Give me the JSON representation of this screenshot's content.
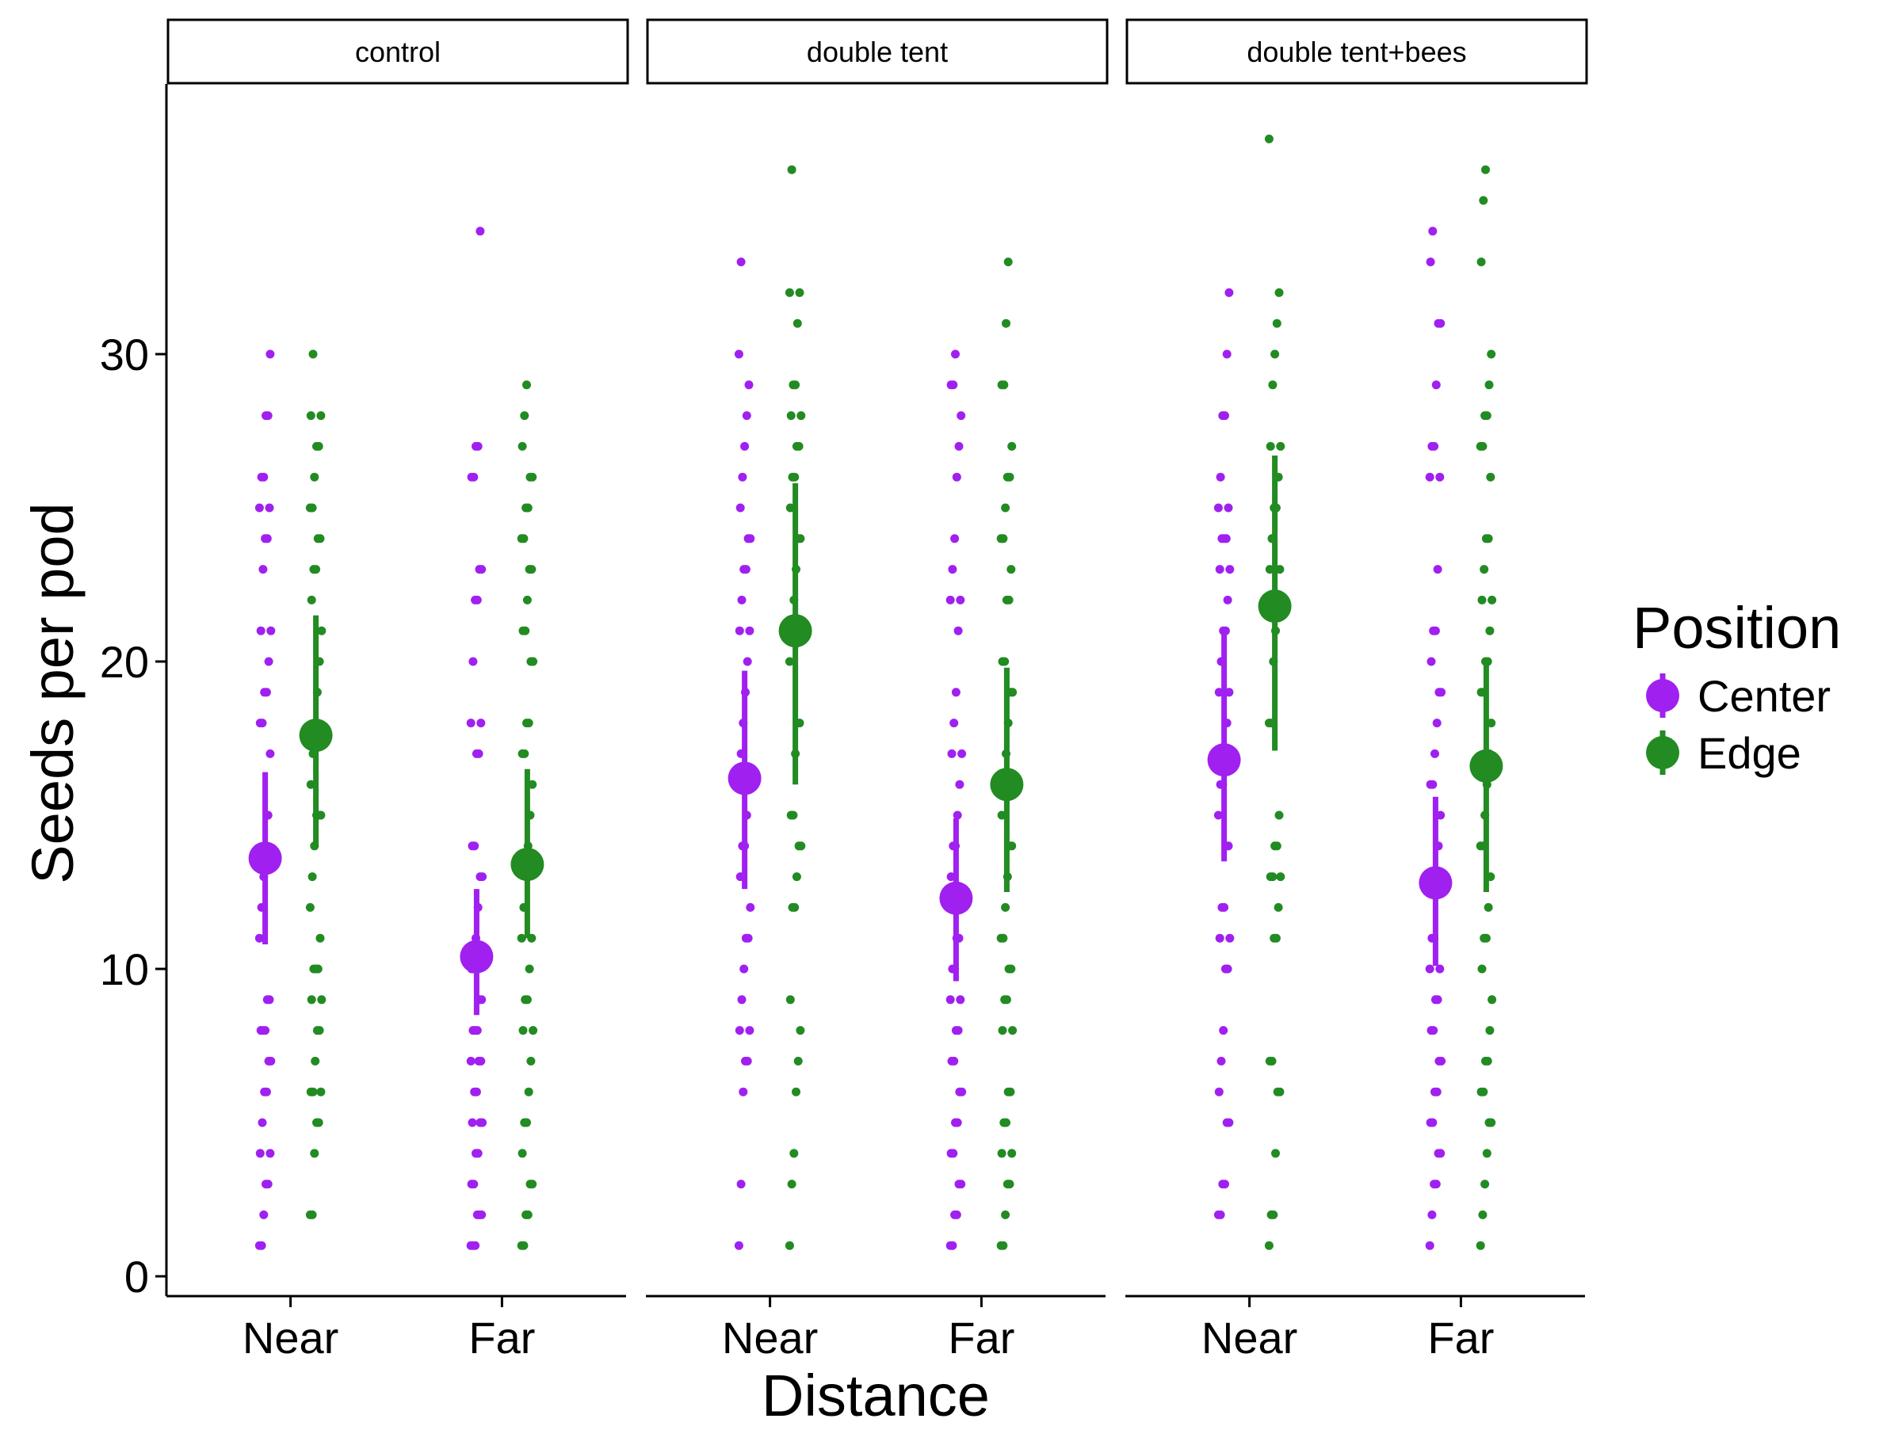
{
  "chart_data": {
    "type": "scatter",
    "xlabel": "Distance",
    "ylabel": "Seeds per pod",
    "categories": [
      "Near",
      "Far"
    ],
    "ylim": [
      -0.5,
      38.5
    ],
    "yticks": [
      0,
      10,
      20,
      30
    ],
    "grid": false,
    "legend": {
      "title": "Position",
      "placement": "right",
      "entries": [
        {
          "name": "Center",
          "color": "#a020f0"
        },
        {
          "name": "Edge",
          "color": "#228b22"
        }
      ]
    },
    "panels": [
      {
        "label": "control",
        "summary": [
          {
            "position": "Center",
            "distance": "Near",
            "mean": 13.6,
            "low": 10.8,
            "high": 16.4
          },
          {
            "position": "Edge",
            "distance": "Near",
            "mean": 17.6,
            "low": 14.0,
            "high": 21.5
          },
          {
            "position": "Center",
            "distance": "Far",
            "mean": 10.4,
            "low": 8.5,
            "high": 12.6
          },
          {
            "position": "Edge",
            "distance": "Far",
            "mean": 13.4,
            "low": 11.0,
            "high": 16.5
          }
        ],
        "points": [
          {
            "position": "Center",
            "distance": "Near",
            "values": [
              1,
              1,
              2,
              3,
              3,
              4,
              4,
              5,
              6,
              6,
              7,
              7,
              8,
              8,
              8,
              9,
              9,
              11,
              12,
              13,
              14,
              15,
              17,
              18,
              18,
              19,
              19,
              20,
              21,
              21,
              23,
              24,
              24,
              25,
              25,
              26,
              26,
              28,
              28,
              30
            ]
          },
          {
            "position": "Edge",
            "distance": "Near",
            "values": [
              2,
              2,
              4,
              5,
              5,
              6,
              6,
              6,
              7,
              8,
              8,
              9,
              9,
              10,
              10,
              10,
              11,
              12,
              13,
              14,
              15,
              15,
              15,
              16,
              17,
              18,
              19,
              20,
              21,
              22,
              23,
              23,
              24,
              24,
              25,
              25,
              26,
              27,
              27,
              28,
              28,
              30
            ]
          },
          {
            "position": "Center",
            "distance": "Far",
            "values": [
              1,
              1,
              1,
              2,
              2,
              2,
              3,
              3,
              4,
              4,
              5,
              5,
              5,
              6,
              6,
              7,
              7,
              7,
              8,
              8,
              8,
              9,
              9,
              10,
              10,
              11,
              12,
              13,
              13,
              14,
              14,
              17,
              17,
              18,
              18,
              20,
              22,
              22,
              23,
              23,
              26,
              26,
              27,
              27,
              34
            ]
          },
          {
            "position": "Edge",
            "distance": "Far",
            "values": [
              1,
              1,
              2,
              2,
              3,
              3,
              4,
              5,
              5,
              6,
              7,
              8,
              8,
              9,
              9,
              10,
              11,
              11,
              12,
              13,
              14,
              15,
              16,
              17,
              17,
              18,
              18,
              20,
              20,
              21,
              21,
              22,
              23,
              23,
              24,
              24,
              25,
              25,
              26,
              26,
              27,
              28,
              29
            ]
          }
        ]
      },
      {
        "label": "double tent",
        "summary": [
          {
            "position": "Center",
            "distance": "Near",
            "mean": 16.2,
            "low": 12.6,
            "high": 19.7
          },
          {
            "position": "Edge",
            "distance": "Near",
            "mean": 21.0,
            "low": 16.0,
            "high": 25.8
          },
          {
            "position": "Center",
            "distance": "Far",
            "mean": 12.3,
            "low": 9.6,
            "high": 14.9
          },
          {
            "position": "Edge",
            "distance": "Far",
            "mean": 16.0,
            "low": 12.5,
            "high": 19.8
          }
        ],
        "points": [
          {
            "position": "Center",
            "distance": "Near",
            "values": [
              1,
              3,
              6,
              7,
              7,
              8,
              8,
              9,
              10,
              11,
              11,
              12,
              13,
              14,
              14,
              15,
              16,
              16,
              17,
              18,
              19,
              20,
              21,
              21,
              22,
              23,
              23,
              24,
              24,
              25,
              26,
              27,
              28,
              29,
              30,
              33
            ]
          },
          {
            "position": "Edge",
            "distance": "Near",
            "values": [
              1,
              3,
              4,
              6,
              7,
              8,
              9,
              12,
              12,
              13,
              14,
              14,
              15,
              15,
              17,
              18,
              18,
              20,
              21,
              22,
              23,
              24,
              24,
              25,
              26,
              26,
              27,
              27,
              28,
              28,
              29,
              29,
              31,
              32,
              32,
              36
            ]
          },
          {
            "position": "Center",
            "distance": "Far",
            "values": [
              1,
              1,
              2,
              2,
              3,
              3,
              4,
              4,
              5,
              5,
              6,
              6,
              7,
              7,
              8,
              8,
              9,
              9,
              10,
              10,
              11,
              11,
              12,
              13,
              14,
              14,
              15,
              16,
              17,
              17,
              18,
              19,
              21,
              22,
              22,
              23,
              24,
              26,
              27,
              28,
              29,
              29,
              30
            ]
          },
          {
            "position": "Edge",
            "distance": "Far",
            "values": [
              1,
              1,
              2,
              3,
              3,
              4,
              4,
              5,
              5,
              6,
              6,
              8,
              8,
              9,
              9,
              10,
              10,
              11,
              11,
              12,
              13,
              14,
              14,
              15,
              16,
              17,
              18,
              19,
              19,
              20,
              20,
              22,
              22,
              23,
              24,
              24,
              25,
              26,
              26,
              27,
              29,
              29,
              31,
              33
            ]
          }
        ]
      },
      {
        "label": "double tent+bees",
        "summary": [
          {
            "position": "Center",
            "distance": "Near",
            "mean": 16.8,
            "low": 13.5,
            "high": 21.0
          },
          {
            "position": "Edge",
            "distance": "Near",
            "mean": 21.8,
            "low": 17.1,
            "high": 26.7
          },
          {
            "position": "Center",
            "distance": "Far",
            "mean": 12.8,
            "low": 10.1,
            "high": 15.6
          },
          {
            "position": "Edge",
            "distance": "Far",
            "mean": 16.6,
            "low": 12.5,
            "high": 20.0
          }
        ],
        "points": [
          {
            "position": "Center",
            "distance": "Near",
            "values": [
              2,
              2,
              3,
              3,
              5,
              5,
              6,
              7,
              8,
              10,
              10,
              11,
              11,
              12,
              12,
              14,
              14,
              15,
              16,
              16,
              17,
              18,
              19,
              19,
              20,
              21,
              21,
              22,
              23,
              23,
              24,
              24,
              24,
              25,
              25,
              26,
              28,
              28,
              30,
              32
            ]
          },
          {
            "position": "Edge",
            "distance": "Near",
            "values": [
              1,
              2,
              2,
              4,
              6,
              6,
              7,
              7,
              11,
              11,
              12,
              13,
              13,
              13,
              14,
              14,
              15,
              18,
              18,
              20,
              21,
              22,
              23,
              23,
              24,
              25,
              25,
              26,
              27,
              27,
              29,
              30,
              31,
              32,
              37
            ]
          },
          {
            "position": "Center",
            "distance": "Far",
            "values": [
              1,
              2,
              3,
              3,
              4,
              4,
              5,
              5,
              6,
              6,
              7,
              7,
              8,
              8,
              9,
              9,
              10,
              10,
              11,
              11,
              13,
              14,
              15,
              16,
              16,
              17,
              18,
              19,
              19,
              20,
              21,
              21,
              23,
              26,
              26,
              27,
              27,
              29,
              31,
              31,
              33,
              34
            ]
          },
          {
            "position": "Edge",
            "distance": "Far",
            "values": [
              1,
              2,
              3,
              4,
              5,
              5,
              6,
              6,
              7,
              7,
              8,
              9,
              10,
              11,
              11,
              12,
              13,
              14,
              14,
              15,
              16,
              17,
              18,
              19,
              19,
              20,
              20,
              21,
              22,
              22,
              23,
              24,
              24,
              26,
              27,
              27,
              28,
              28,
              29,
              30,
              33,
              35,
              36
            ]
          }
        ]
      }
    ]
  }
}
